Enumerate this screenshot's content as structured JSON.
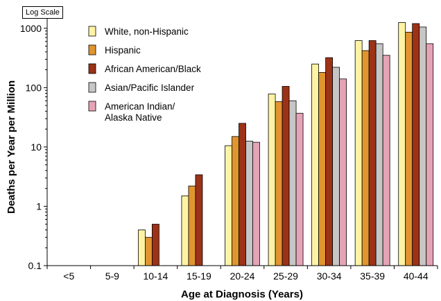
{
  "chart_data": {
    "type": "bar",
    "badge": "Log Scale",
    "xlabel": "Age at Diagnosis (Years)",
    "ylabel": "Deaths per Year per Million",
    "yscale": "log",
    "ylim": [
      0.1,
      2000
    ],
    "yticks": [
      "0.1",
      "1",
      "10",
      "100",
      "1000"
    ],
    "categories": [
      "<5",
      "5-9",
      "10-14",
      "15-19",
      "20-24",
      "25-29",
      "30-34",
      "35-39",
      "40-44"
    ],
    "series": [
      {
        "name": "White, non-Hispanic",
        "color": "#fef3a4",
        "values": [
          null,
          null,
          0.4,
          1.5,
          10.5,
          78,
          250,
          620,
          1250
        ]
      },
      {
        "name": "Hispanic",
        "color": "#e1952f",
        "values": [
          null,
          null,
          0.3,
          2.2,
          15,
          58,
          180,
          420,
          860
        ]
      },
      {
        "name": "African American/Black",
        "color": "#9c3217",
        "values": [
          null,
          null,
          0.5,
          3.4,
          25,
          105,
          320,
          620,
          1200
        ]
      },
      {
        "name": "Asian/Pacific Islander",
        "color": "#c6c6c6",
        "values": [
          null,
          null,
          null,
          null,
          12.5,
          60,
          220,
          550,
          1050
        ]
      },
      {
        "name": "American Indian/ Alaska Native",
        "name_lines": [
          "American Indian/",
          "Alaska Native"
        ],
        "color": "#e5a3b6",
        "values": [
          null,
          null,
          null,
          null,
          12,
          37,
          140,
          350,
          550
        ]
      }
    ],
    "legend_position": "top-left",
    "grid": false
  }
}
